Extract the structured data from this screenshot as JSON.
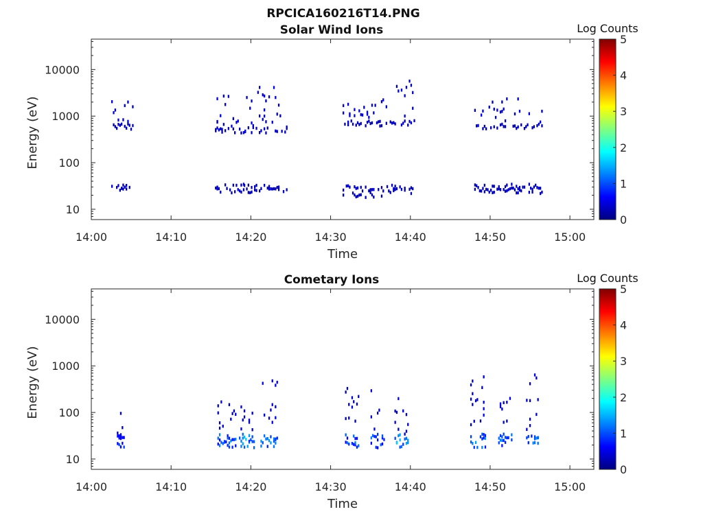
{
  "figure_title": "RPCICA160216T14.PNG",
  "colormap": [
    "#000080",
    "#0000ff",
    "#0080ff",
    "#00ffff",
    "#80ff80",
    "#ffff00",
    "#ff8000",
    "#ff0000",
    "#800000"
  ],
  "chart_data": [
    {
      "type": "heatmap",
      "title": "Solar Wind Ions",
      "xlabel": "Time",
      "ylabel": "Energy (eV)",
      "yscale": "log",
      "xlim": [
        "14:00",
        "15:03"
      ],
      "ylim": [
        6,
        45000
      ],
      "xticks": [
        "14:00",
        "14:10",
        "14:20",
        "14:30",
        "14:40",
        "14:50",
        "15:00"
      ],
      "yticks": [
        "10",
        "100",
        "1000",
        "10000"
      ],
      "colorbar": {
        "label": "Log Counts",
        "range": [
          0,
          5
        ],
        "ticks": [
          "0",
          "1",
          "2",
          "3",
          "4",
          "5"
        ]
      },
      "bursts": [
        {
          "time_min": [
            2.5,
            5.2
          ],
          "band_energies_eV": [
            25,
            30,
            600,
            800,
            1500
          ],
          "level": 0.3
        },
        {
          "time_min": [
            15.5,
            19.2
          ],
          "band_energies_eV": [
            25,
            30,
            500,
            700,
            1000,
            1900
          ],
          "level": 0.3
        },
        {
          "time_min": [
            19.0,
            24.5
          ],
          "band_energies_eV": [
            25,
            30,
            500,
            700,
            1500,
            3000
          ],
          "level": 0.3
        },
        {
          "time_min": [
            31.5,
            37.0
          ],
          "band_energies_eV": [
            20,
            28,
            700,
            1000,
            1500
          ],
          "level": 0.3
        },
        {
          "time_min": [
            37.0,
            40.5
          ],
          "band_energies_eV": [
            25,
            30,
            700,
            1500,
            4000
          ],
          "level": 0.3
        },
        {
          "time_min": [
            48.0,
            56.5
          ],
          "band_energies_eV": [
            25,
            30,
            600,
            1000,
            1800
          ],
          "level": 0.3
        }
      ]
    },
    {
      "type": "heatmap",
      "title": "Cometary Ions",
      "xlabel": "Time",
      "ylabel": "Energy (eV)",
      "yscale": "log",
      "xlim": [
        "14:00",
        "15:03"
      ],
      "ylim": [
        6,
        45000
      ],
      "xticks": [
        "14:00",
        "14:10",
        "14:20",
        "14:30",
        "14:40",
        "14:50",
        "15:00"
      ],
      "yticks": [
        "10",
        "100",
        "1000",
        "10000"
      ],
      "colorbar": {
        "label": "Log Counts",
        "range": [
          0,
          5
        ],
        "ticks": [
          "0",
          "1",
          "2",
          "3",
          "4",
          "5"
        ]
      },
      "bursts": [
        {
          "time_min": [
            3.2,
            4.2
          ],
          "band_energies_eV": [
            20,
            25,
            30,
            45,
            65
          ],
          "level": 0.8
        },
        {
          "time_min": [
            15.8,
            18.0
          ],
          "band_energies_eV": [
            20,
            25,
            30,
            60,
            80,
            130
          ],
          "level": 1.0
        },
        {
          "time_min": [
            18.5,
            20.3
          ],
          "band_energies_eV": [
            20,
            25,
            30,
            60,
            90
          ],
          "level": 1.3
        },
        {
          "time_min": [
            21.2,
            23.2
          ],
          "band_energies_eV": [
            20,
            25,
            30,
            60,
            90,
            150,
            400
          ],
          "level": 1.1
        },
        {
          "time_min": [
            31.8,
            33.5
          ],
          "band_energies_eV": [
            20,
            25,
            30,
            60,
            100,
            200,
            300
          ],
          "level": 1.0
        },
        {
          "time_min": [
            35.0,
            36.7
          ],
          "band_energies_eV": [
            20,
            25,
            30,
            60,
            100,
            200
          ],
          "level": 1.0
        },
        {
          "time_min": [
            38.0,
            39.8
          ],
          "band_energies_eV": [
            20,
            25,
            30,
            50,
            80,
            150
          ],
          "level": 1.3
        },
        {
          "time_min": [
            47.5,
            49.5
          ],
          "band_energies_eV": [
            20,
            25,
            30,
            60,
            100,
            200,
            400
          ],
          "level": 1.1
        },
        {
          "time_min": [
            51.0,
            52.8
          ],
          "band_energies_eV": [
            20,
            25,
            30,
            60,
            100,
            200
          ],
          "level": 1.0
        },
        {
          "time_min": [
            54.5,
            56.0
          ],
          "band_energies_eV": [
            20,
            25,
            30,
            60,
            100,
            200,
            500
          ],
          "level": 1.1
        }
      ]
    }
  ]
}
